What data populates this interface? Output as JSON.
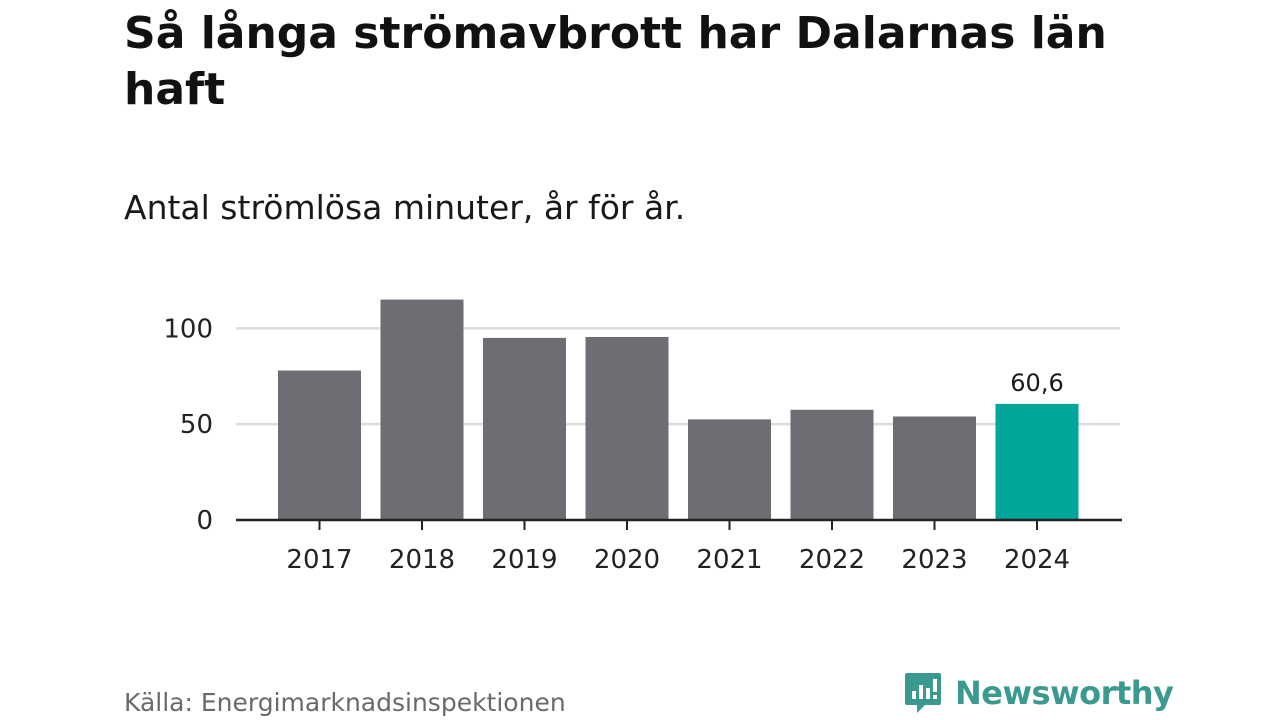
{
  "title": "Så långa strömavbrott har Dalarnas län haft",
  "subtitle": "Antal strömlösa minuter, år för år.",
  "source": "Källa: Energimarknadsinspektionen",
  "brand": {
    "name": "Newsworthy",
    "icon": "newsworthy-logo-icon",
    "color": "#3b9a8f"
  },
  "chart_data": {
    "type": "bar",
    "categories": [
      "2017",
      "2018",
      "2019",
      "2020",
      "2021",
      "2022",
      "2023",
      "2024"
    ],
    "values": [
      78,
      115,
      95,
      95.5,
      52.5,
      57.5,
      54,
      60.6
    ],
    "data_labels": [
      null,
      null,
      null,
      null,
      null,
      null,
      null,
      "60,6"
    ],
    "highlight_index": 7,
    "bar_color": "#6e6d73",
    "highlight_color": "#00a699",
    "ylim": [
      0,
      120
    ],
    "yticks": [
      0,
      50,
      100
    ],
    "ytick_labels": [
      "0",
      "50",
      "100"
    ],
    "grid": true,
    "xlabel": "",
    "ylabel": ""
  }
}
